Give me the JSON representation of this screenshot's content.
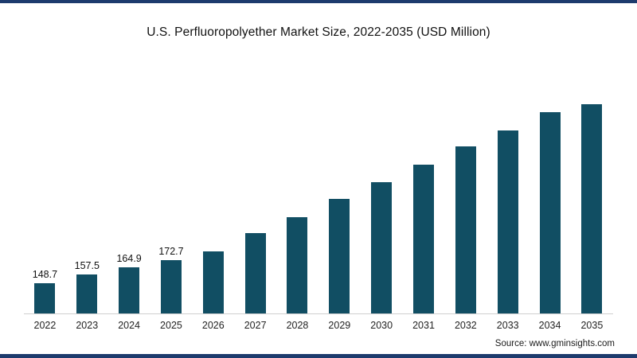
{
  "page": {
    "frame_color": "#1d3b6d",
    "background": "#ffffff"
  },
  "title": "U.S. Perfluoropolyether Market Size, 2022-2035 (USD Million)",
  "source": "Source: www.gminsights.com",
  "chart_data": {
    "type": "bar",
    "title": "U.S. Perfluoropolyether Market Size, 2022-2035 (USD Million)",
    "unit": "USD Million",
    "categories": [
      "2022",
      "2023",
      "2024",
      "2025",
      "2026",
      "2027",
      "2028",
      "2029",
      "2030",
      "2031",
      "2032",
      "2033",
      "2034",
      "2035"
    ],
    "values": [
      148.7,
      157.5,
      164.9,
      172.7,
      181.5,
      200.9,
      217.4,
      236.5,
      254.0,
      273.0,
      292.1,
      308.7,
      327.8,
      345.3
    ],
    "value_labels": [
      "148.7",
      "157.5",
      "164.9",
      "172.7",
      "",
      "",
      "",
      "",
      "",
      "",
      "",
      "",
      "",
      ""
    ],
    "bar_color": "#114e63",
    "ylim": [
      117,
      350
    ],
    "grid": false,
    "legend": "none",
    "xlabel": "",
    "ylabel": ""
  }
}
